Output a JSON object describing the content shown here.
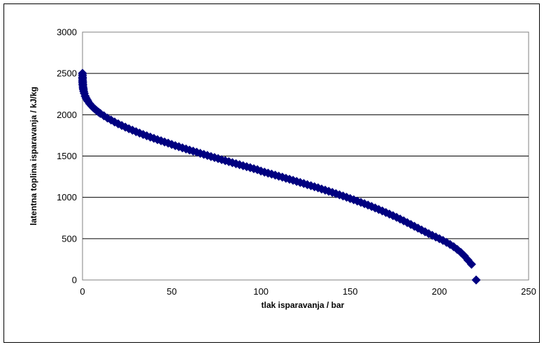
{
  "chart_data": {
    "type": "scatter",
    "title": "",
    "xlabel": "tlak isparavanja / bar",
    "ylabel": "latentna toplina isparavanja / kJ/kg",
    "xlim": [
      0,
      250
    ],
    "ylim": [
      0,
      3000
    ],
    "x_ticks": [
      "0",
      "50",
      "100",
      "150",
      "200",
      "250"
    ],
    "y_ticks": [
      "0",
      "500",
      "1000",
      "1500",
      "2000",
      "2500",
      "3000"
    ],
    "grid": "horizontal",
    "legend": "none",
    "marker": "diamond",
    "marker_color": "#000080",
    "series": [
      {
        "points": [
          [
            0.006,
            2501
          ],
          [
            0.01,
            2478
          ],
          [
            0.02,
            2454
          ],
          [
            0.03,
            2439
          ],
          [
            0.05,
            2418
          ],
          [
            0.08,
            2399
          ],
          [
            0.1,
            2393
          ],
          [
            0.15,
            2373
          ],
          [
            0.2,
            2358
          ],
          [
            0.3,
            2336
          ],
          [
            0.4,
            2319
          ],
          [
            0.5,
            2305
          ],
          [
            0.7,
            2283
          ],
          [
            1.0,
            2258
          ],
          [
            1.5,
            2226
          ],
          [
            2,
            2202
          ],
          [
            2.5,
            2182
          ],
          [
            3,
            2164
          ],
          [
            4,
            2134
          ],
          [
            5,
            2109
          ],
          [
            6,
            2086
          ],
          [
            7,
            2067
          ],
          [
            8,
            2048
          ],
          [
            9,
            2031
          ],
          [
            10,
            2015
          ],
          [
            12,
            1987
          ],
          [
            14,
            1960
          ],
          [
            16,
            1936
          ],
          [
            18,
            1912
          ],
          [
            20,
            1890
          ],
          [
            22,
            1870
          ],
          [
            24,
            1850
          ],
          [
            26,
            1831
          ],
          [
            28,
            1813
          ],
          [
            30,
            1795
          ],
          [
            32,
            1778
          ],
          [
            34,
            1761
          ],
          [
            36,
            1745
          ],
          [
            38,
            1729
          ],
          [
            40,
            1714
          ],
          [
            42,
            1699
          ],
          [
            44,
            1685
          ],
          [
            46,
            1670
          ],
          [
            48,
            1656
          ],
          [
            50,
            1640
          ],
          [
            52,
            1626
          ],
          [
            54,
            1613
          ],
          [
            56,
            1599
          ],
          [
            58,
            1586
          ],
          [
            60,
            1572
          ],
          [
            62,
            1559
          ],
          [
            64,
            1546
          ],
          [
            66,
            1533
          ],
          [
            68,
            1520
          ],
          [
            70,
            1507
          ],
          [
            72,
            1494
          ],
          [
            74,
            1482
          ],
          [
            76,
            1469
          ],
          [
            78,
            1457
          ],
          [
            80,
            1444
          ],
          [
            82,
            1432
          ],
          [
            84,
            1420
          ],
          [
            86,
            1407
          ],
          [
            88,
            1395
          ],
          [
            90,
            1383
          ],
          [
            92,
            1371
          ],
          [
            94,
            1359
          ],
          [
            96,
            1347
          ],
          [
            98,
            1335
          ],
          [
            100,
            1318
          ],
          [
            102,
            1305
          ],
          [
            104,
            1293
          ],
          [
            106,
            1281
          ],
          [
            108,
            1269
          ],
          [
            110,
            1256
          ],
          [
            112,
            1244
          ],
          [
            114,
            1231
          ],
          [
            116,
            1219
          ],
          [
            118,
            1206
          ],
          [
            120,
            1193
          ],
          [
            122,
            1180
          ],
          [
            124,
            1167
          ],
          [
            126,
            1154
          ],
          [
            128,
            1141
          ],
          [
            130,
            1128
          ],
          [
            132,
            1115
          ],
          [
            134,
            1101
          ],
          [
            136,
            1087
          ],
          [
            138,
            1073
          ],
          [
            140,
            1059
          ],
          [
            142,
            1045
          ],
          [
            144,
            1031
          ],
          [
            146,
            1016
          ],
          [
            148,
            1001
          ],
          [
            150,
            986
          ],
          [
            152,
            971
          ],
          [
            154,
            955
          ],
          [
            156,
            939
          ],
          [
            158,
            923
          ],
          [
            160,
            906
          ],
          [
            162,
            889
          ],
          [
            164,
            872
          ],
          [
            166,
            854
          ],
          [
            168,
            836
          ],
          [
            170,
            817
          ],
          [
            172,
            798
          ],
          [
            174,
            778
          ],
          [
            176,
            758
          ],
          [
            178,
            737
          ],
          [
            180,
            716
          ],
          [
            182,
            694
          ],
          [
            184,
            672
          ],
          [
            186,
            650
          ],
          [
            188,
            627
          ],
          [
            190,
            605
          ],
          [
            192,
            583
          ],
          [
            194,
            561
          ],
          [
            196,
            540
          ],
          [
            198,
            520
          ],
          [
            200,
            500
          ],
          [
            202,
            478
          ],
          [
            204,
            455
          ],
          [
            206,
            430
          ],
          [
            208,
            402
          ],
          [
            210,
            370
          ],
          [
            212,
            334
          ],
          [
            214,
            292
          ],
          [
            216,
            241
          ],
          [
            218,
            190
          ],
          [
            220.6,
            0
          ]
        ]
      }
    ]
  }
}
